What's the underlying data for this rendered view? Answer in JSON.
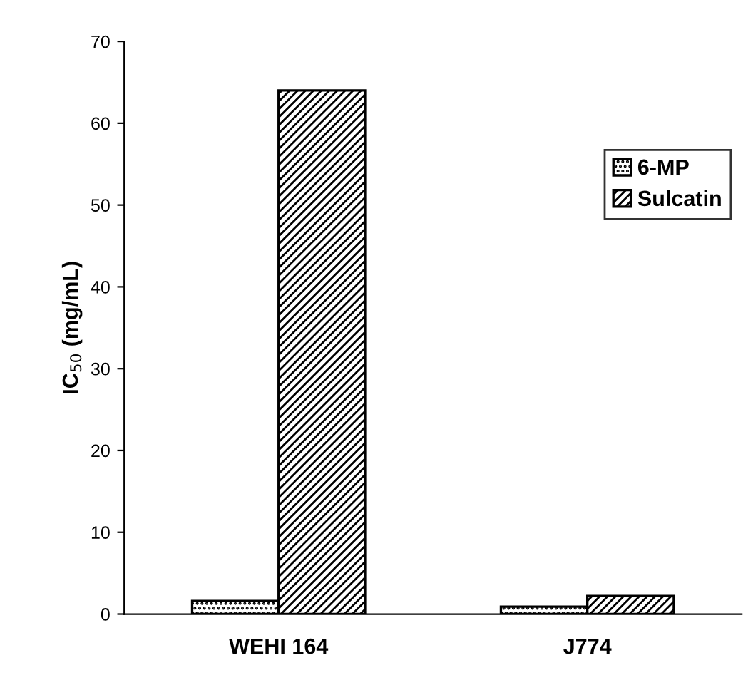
{
  "chart_data": {
    "type": "bar",
    "ylabel": "IC$_{50}$ (mg/mL)",
    "categories": [
      "WEHI 164",
      "J774"
    ],
    "series": [
      {
        "name": "6-MP",
        "color": "#000000",
        "values": [
          1.6,
          0.9
        ]
      },
      {
        "name": "Sulcatin",
        "color": "#000000",
        "values": [
          64,
          2.2
        ]
      }
    ],
    "ylim": [
      0,
      70
    ],
    "yticks": [
      0,
      10,
      20,
      30,
      40,
      50,
      60,
      70
    ],
    "grid": false,
    "legend": "right"
  }
}
